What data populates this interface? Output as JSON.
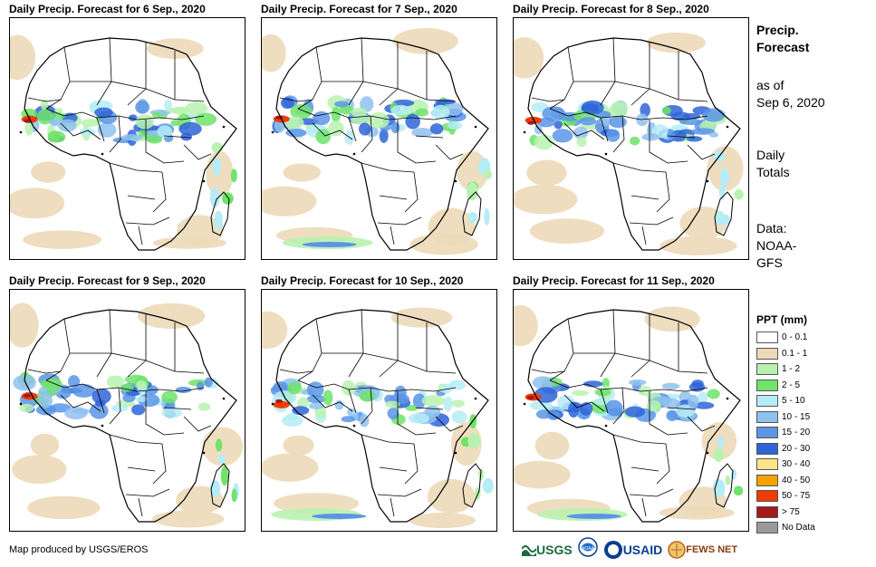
{
  "panels": [
    {
      "title": "Daily Precip. Forecast for 6 Sep., 2020"
    },
    {
      "title": "Daily Precip. Forecast for 7 Sep., 2020"
    },
    {
      "title": "Daily Precip. Forecast for 8 Sep., 2020"
    },
    {
      "title": "Daily Precip. Forecast for 9 Sep., 2020"
    },
    {
      "title": "Daily Precip. Forecast for 10 Sep., 2020"
    },
    {
      "title": "Daily Precip. Forecast for 11 Sep., 2020"
    }
  ],
  "sidebar": {
    "title_line1": "Precip.",
    "title_line2": "Forecast",
    "asof_line1": "as of",
    "asof_line2": "Sep 6, 2020",
    "daily_line1": "Daily",
    "daily_line2": "Totals",
    "data_line1": "Data:",
    "data_line2": "NOAA-",
    "data_line3": "GFS"
  },
  "legend": {
    "title": "PPT (mm)",
    "items": [
      {
        "label": "0 - 0.1",
        "color": "#ffffff"
      },
      {
        "label": "0.1 - 1",
        "color": "#ecd9b8"
      },
      {
        "label": "1 - 2",
        "color": "#b9f2b0"
      },
      {
        "label": "2 - 5",
        "color": "#6fe36a"
      },
      {
        "label": "5 - 10",
        "color": "#b6ecf6"
      },
      {
        "label": "10 - 15",
        "color": "#8fc1ef"
      },
      {
        "label": "15 - 20",
        "color": "#5a95e6"
      },
      {
        "label": "20 - 30",
        "color": "#2f64d8"
      },
      {
        "label": "30 - 40",
        "color": "#fbe58a"
      },
      {
        "label": "40 - 50",
        "color": "#f6a200"
      },
      {
        "label": "50 - 75",
        "color": "#ee3b00"
      },
      {
        "label": "> 75",
        "color": "#a5181b"
      },
      {
        "label": "No Data",
        "color": "#9a9a9a"
      }
    ]
  },
  "footer": {
    "credit": "Map produced by USGS/EROS"
  },
  "logos": {
    "usgs": "USGS",
    "noaa": "NOAA",
    "usaid": "USAID",
    "fews": "FEWS NET"
  }
}
